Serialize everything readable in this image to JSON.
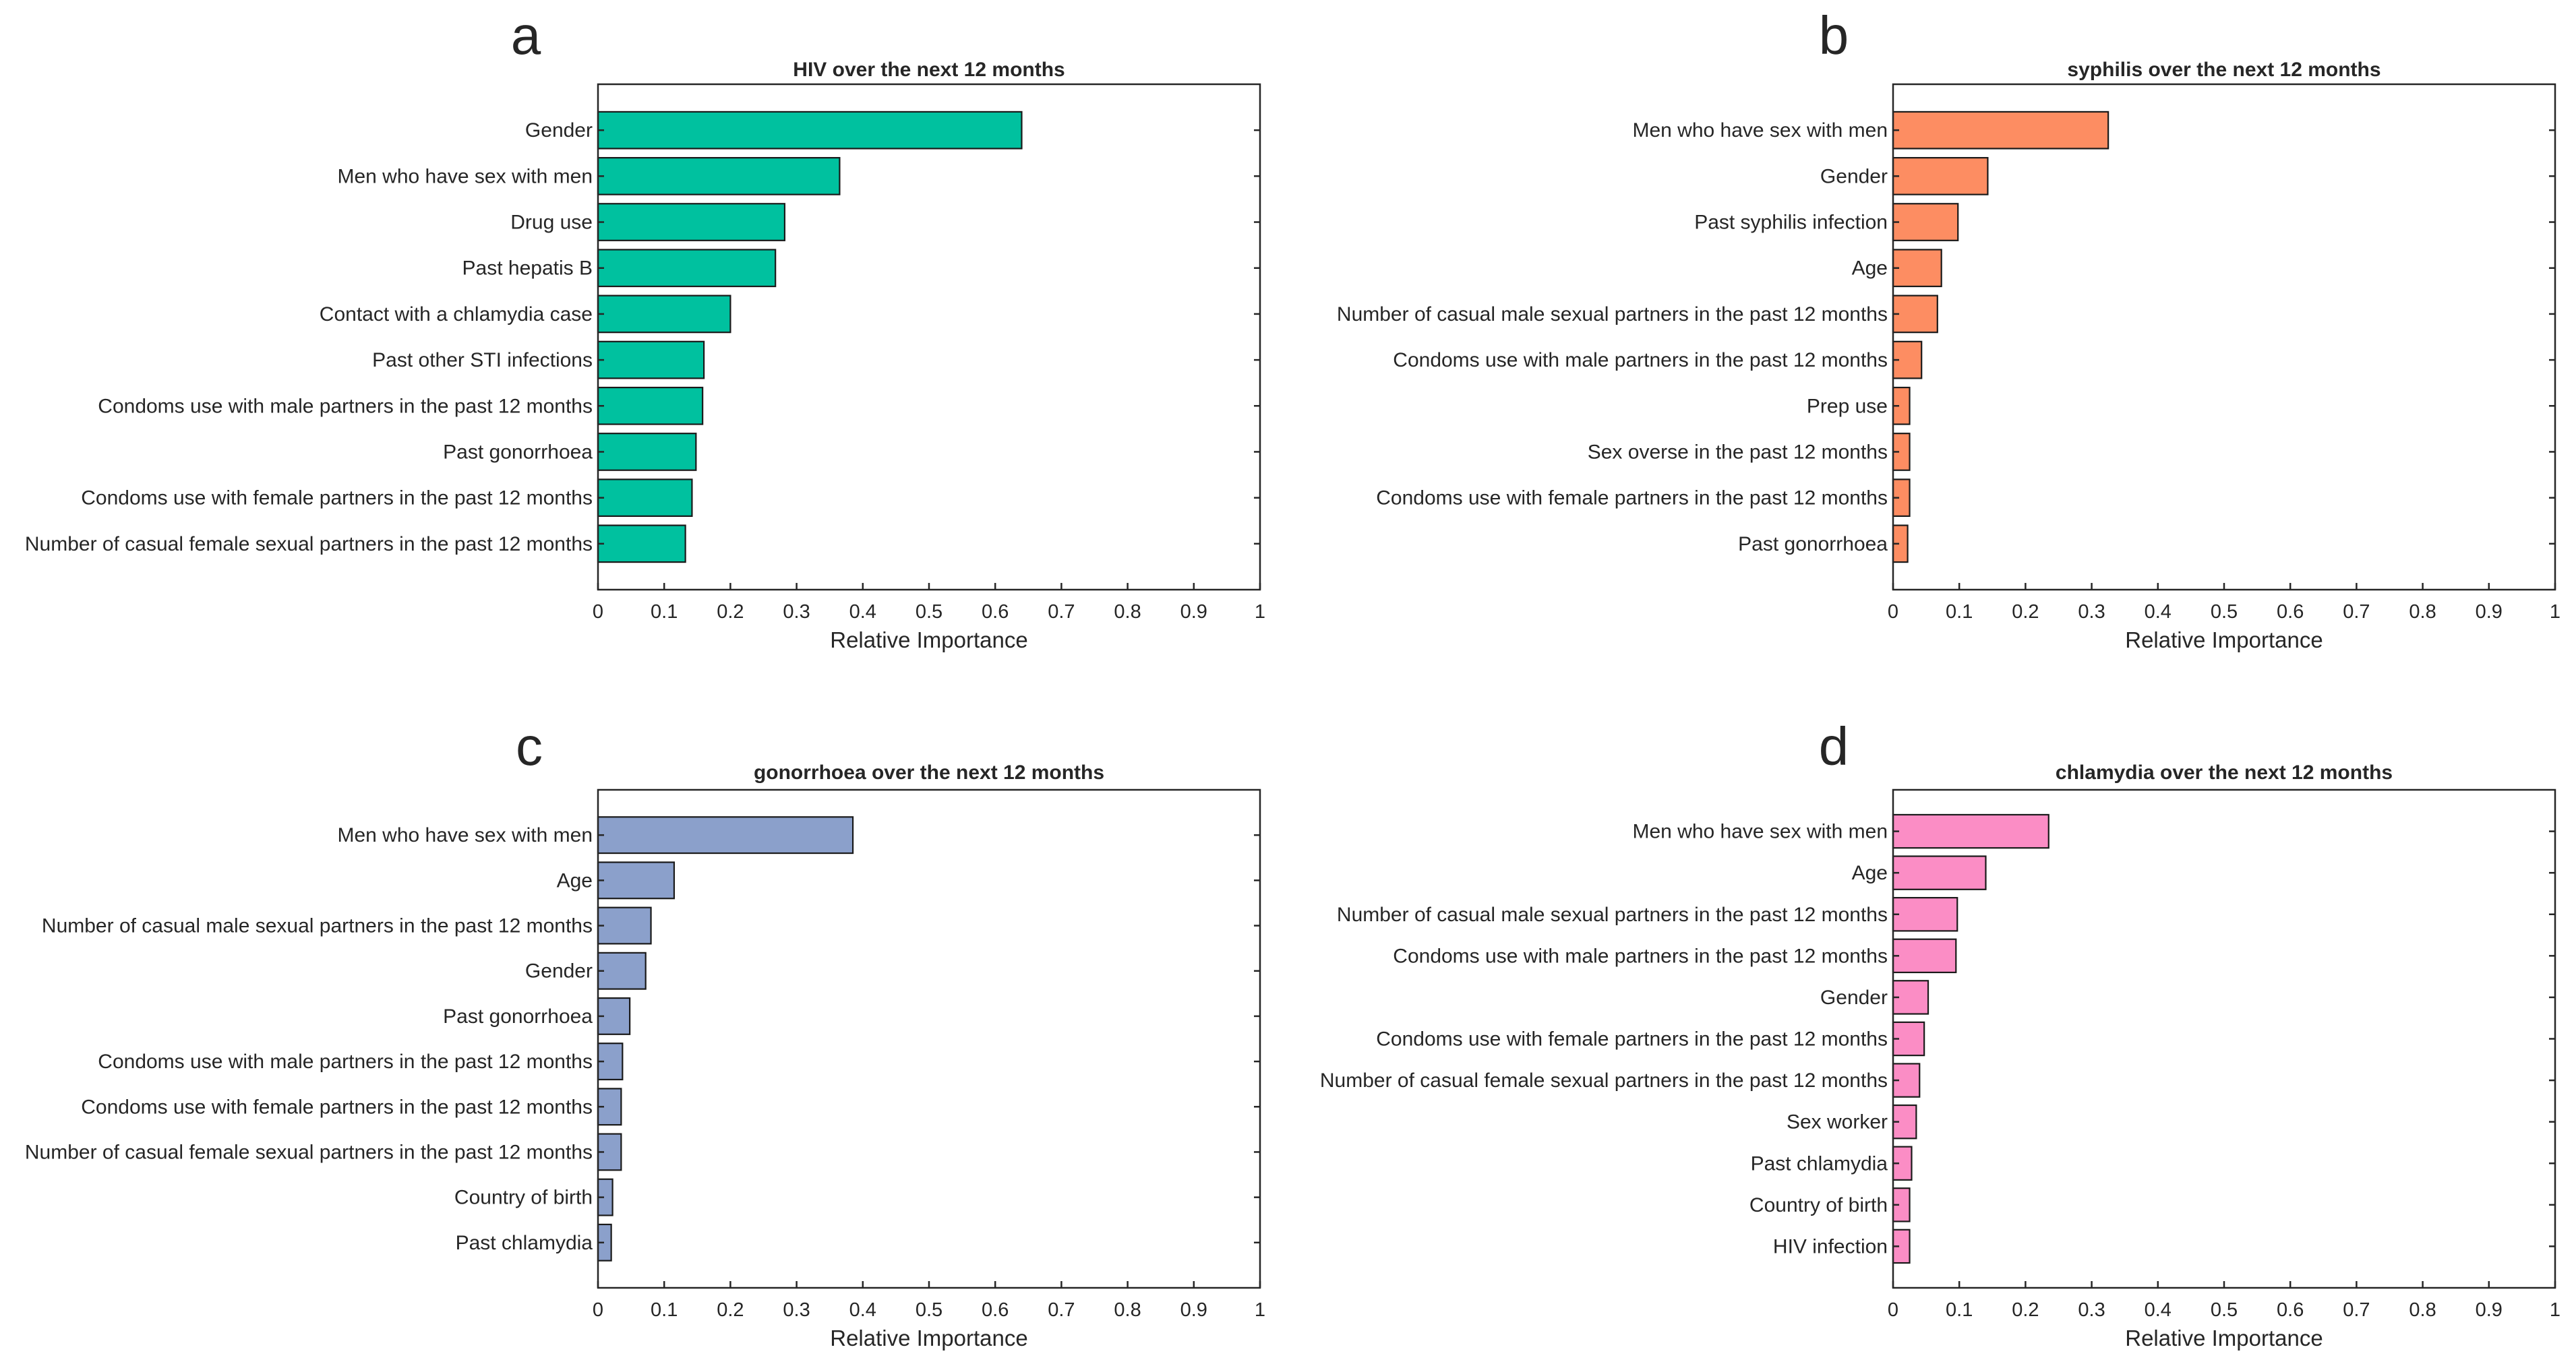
{
  "chart_data": [
    {
      "panel": "a",
      "type": "bar",
      "orientation": "horizontal",
      "title": "HIV over the next 12 months",
      "xlabel": "Relative Importance",
      "ylabel": "",
      "xlim": [
        0,
        1
      ],
      "xticks": [
        "0",
        "0.1",
        "0.2",
        "0.3",
        "0.4",
        "0.5",
        "0.6",
        "0.7",
        "0.8",
        "0.9",
        "1"
      ],
      "color": "#00c19f",
      "categories": [
        "Gender",
        "Men who have sex with men",
        "Drug use",
        "Past hepatis B",
        "Contact with a chlamydia case",
        "Past other STI infections",
        "Condoms use  with male partners in the past 12 months",
        "Past gonorrhoea",
        "Condoms use  with female partners in the past 12 months",
        "Number of casual female sexual partners in the past 12 months"
      ],
      "values": [
        0.64,
        0.365,
        0.282,
        0.268,
        0.2,
        0.16,
        0.158,
        0.148,
        0.142,
        0.132
      ]
    },
    {
      "panel": "b",
      "type": "bar",
      "orientation": "horizontal",
      "title": "syphilis over the next 12 months",
      "xlabel": "Relative Importance",
      "ylabel": "",
      "xlim": [
        0,
        1
      ],
      "xticks": [
        "0",
        "0.1",
        "0.2",
        "0.3",
        "0.4",
        "0.5",
        "0.6",
        "0.7",
        "0.8",
        "0.9",
        "1"
      ],
      "color": "#fd8d62",
      "categories": [
        "Men who have sex with men",
        "Gender",
        "Past syphilis infection",
        "Age",
        "Number of casual male sexual partners in the past 12 months",
        "Condoms use  with male partners in the past 12 months",
        "Prep use",
        "Sex overse in the past 12 months",
        "Condoms use  with female partners in the past 12 months",
        "Past gonorrhoea"
      ],
      "values": [
        0.325,
        0.143,
        0.098,
        0.073,
        0.067,
        0.043,
        0.025,
        0.025,
        0.025,
        0.022
      ]
    },
    {
      "panel": "c",
      "type": "bar",
      "orientation": "horizontal",
      "title": "gonorrhoea over the next 12 months",
      "xlabel": "Relative Importance",
      "ylabel": "",
      "xlim": [
        0,
        1
      ],
      "xticks": [
        "0",
        "0.1",
        "0.2",
        "0.3",
        "0.4",
        "0.5",
        "0.6",
        "0.7",
        "0.8",
        "0.9",
        "1"
      ],
      "color": "#8ba0cb",
      "categories": [
        "Men who have sex with men",
        "Age",
        "Number of casual male sexual partners in the past 12 months",
        "Gender",
        "Past gonorrhoea",
        "Condoms use  with male partners in the past 12 months",
        "Condoms use  with female partners in the past 12 months",
        "Number of casual female sexual partners in the past 12 months",
        "Country of birth",
        "Past chlamydia"
      ],
      "values": [
        0.385,
        0.115,
        0.08,
        0.072,
        0.048,
        0.037,
        0.035,
        0.035,
        0.022,
        0.02
      ]
    },
    {
      "panel": "d",
      "type": "bar",
      "orientation": "horizontal",
      "title": "chlamydia over the next 12 months",
      "xlabel": "Relative Importance",
      "ylabel": "",
      "xlim": [
        0,
        1
      ],
      "xticks": [
        "0",
        "0.1",
        "0.2",
        "0.3",
        "0.4",
        "0.5",
        "0.6",
        "0.7",
        "0.8",
        "0.9",
        "1"
      ],
      "color": "#fb8dc5",
      "categories": [
        "Men who have sex with men",
        "Age",
        "Number of casual male sexual partners in the past 12 months",
        "Condoms use  with male partners in the past 12 months",
        "Gender",
        "Condoms use with female partners in the past 12 months",
        "Number of casual female sexual partners in the past 12 months",
        "Sex worker",
        "Past chlamydia",
        "Country of birth",
        "HIV infection"
      ],
      "values": [
        0.235,
        0.14,
        0.097,
        0.095,
        0.053,
        0.047,
        0.04,
        0.035,
        0.028,
        0.025,
        0.025
      ]
    }
  ]
}
